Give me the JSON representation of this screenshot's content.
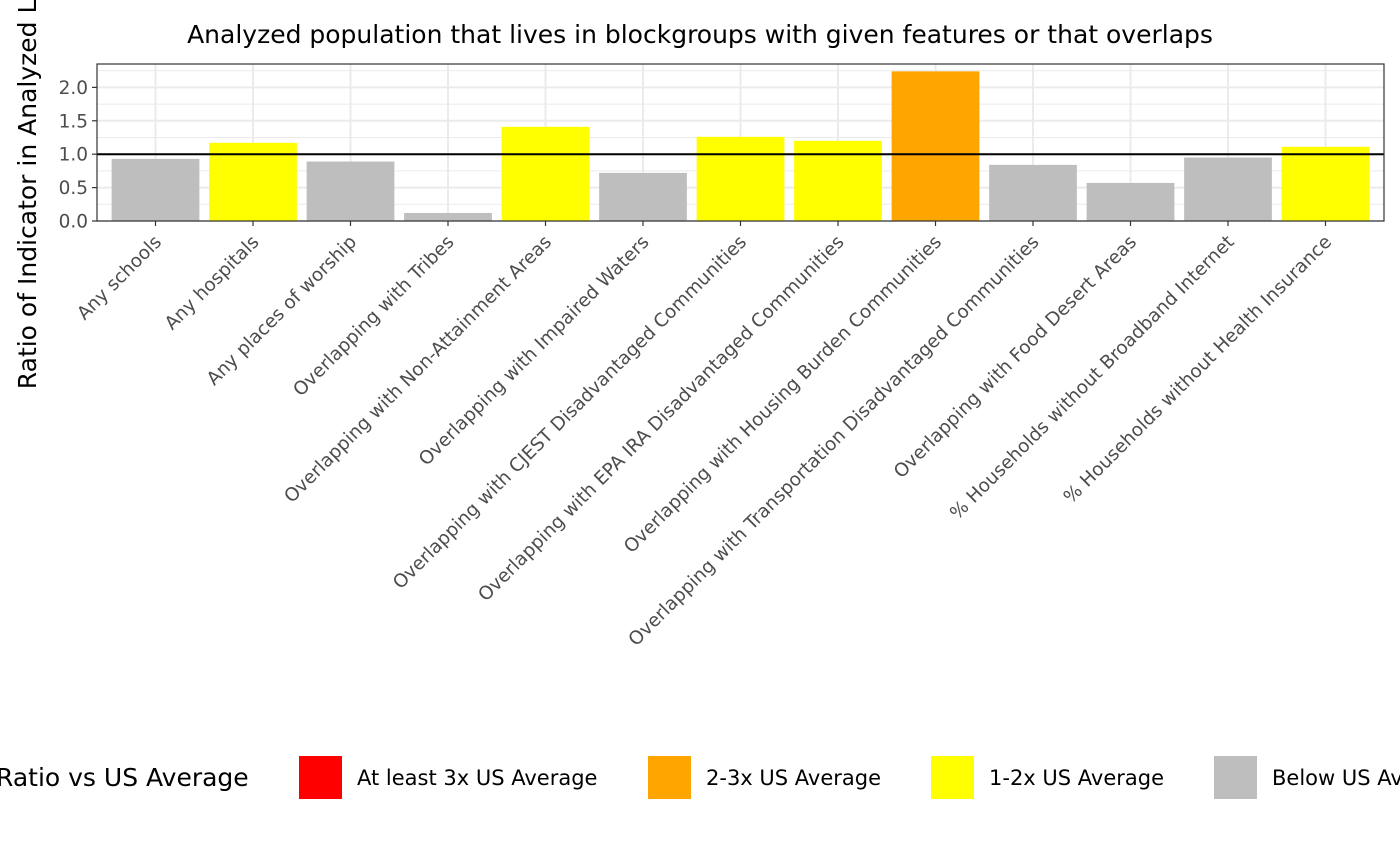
{
  "chart_data": {
    "type": "bar",
    "title": "Analyzed population that lives in blockgroups with given features or that overlaps",
    "xlabel": "",
    "ylabel": "Ratio of Indicator in Analyzed Locations",
    "ylim": [
      0,
      2.35
    ],
    "yticks": [
      "0.0",
      "0.5",
      "1.0",
      "1.5",
      "2.0"
    ],
    "reference_line": 1.0,
    "grid": true,
    "categories": [
      "Any schools",
      "Any hospitals",
      "Any places of worship",
      "Overlapping with Tribes",
      "Overlapping with Non-Attainment Areas",
      "Overlapping with Impaired Waters",
      "Overlapping with CJEST Disadvantaged Communities",
      "Overlapping with EPA IRA Disadvantaged Communities",
      "Overlapping with Housing Burden Communities",
      "Overlapping with Transportation Disadvantaged Communities",
      "Overlapping with Food Desert Areas",
      "% Households without Broadband Internet",
      "% Households without Health Insurance"
    ],
    "values": [
      0.93,
      1.17,
      0.89,
      0.12,
      1.41,
      0.72,
      1.26,
      1.2,
      2.24,
      0.84,
      0.57,
      0.95,
      1.11
    ],
    "bar_classes": [
      "Below US Average",
      "1-2x US Average",
      "Below US Average",
      "Below US Average",
      "1-2x US Average",
      "Below US Average",
      "1-2x US Average",
      "1-2x US Average",
      "2-3x US Average",
      "Below US Average",
      "Below US Average",
      "Below US Average",
      "1-2x US Average"
    ],
    "legend": {
      "title": "Ratio vs US Average",
      "placement": "bottom",
      "items": [
        {
          "label": "At least 3x US Average",
          "color": "#ff0000"
        },
        {
          "label": "2-3x US Average",
          "color": "#ffa500"
        },
        {
          "label": "1-2x US Average",
          "color": "#ffff00"
        },
        {
          "label": "Below US Average",
          "color": "#bebebe"
        }
      ]
    }
  }
}
